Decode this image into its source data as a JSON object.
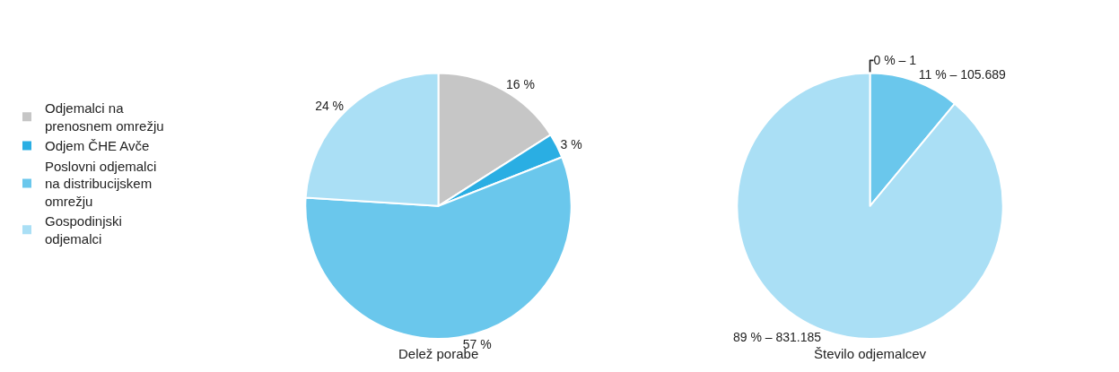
{
  "chart_data": [
    {
      "type": "pie",
      "title": "Delež porabe",
      "categories": [
        "Odjemalci na prenosnem omrežju",
        "Odjem ČHE Avče",
        "Poslovni odjemalci na distribucijskem omrežju",
        "Gospodinjski odjemalci"
      ],
      "values": [
        16,
        3,
        57,
        24
      ],
      "colors": [
        "#c6c6c6",
        "#2aaee3",
        "#6ac7ec",
        "#aadff5"
      ],
      "value_labels": [
        "16 %",
        "3 %",
        "57 %",
        "24 %"
      ],
      "legend": "left"
    },
    {
      "type": "pie",
      "title": "Število odjemalcev",
      "categories": [
        null,
        null,
        null
      ],
      "values": [
        0,
        11,
        89
      ],
      "colors": [
        "#2aaee3",
        "#6ac7ec",
        "#aadff5"
      ],
      "value_labels": [
        "0 % – 1",
        "11 % – 105.689",
        "89 % – 831.185"
      ]
    }
  ]
}
